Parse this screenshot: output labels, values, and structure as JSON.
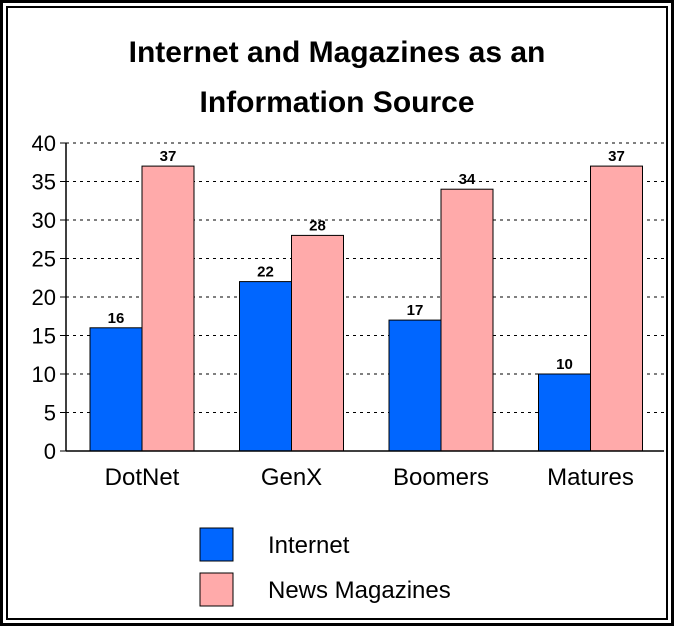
{
  "chart_data": {
    "type": "bar",
    "title_line1": "Internet and Magazines as an",
    "title_line2": "Information Source",
    "categories": [
      "DotNet",
      "GenX",
      "Boomers",
      "Matures"
    ],
    "series": [
      {
        "name": "Internet",
        "values": [
          16,
          22,
          17,
          10
        ],
        "color": "#0066ff"
      },
      {
        "name": "News Magazines",
        "values": [
          37,
          28,
          34,
          37
        ],
        "color": "#ffaaaa"
      }
    ],
    "yticks": [
      "0",
      "5",
      "10",
      "15",
      "20",
      "25",
      "30",
      "35",
      "40"
    ],
    "ylim": [
      0,
      40
    ],
    "grid": true,
    "gridline_style": "dotted",
    "legend_position": "bottom"
  }
}
